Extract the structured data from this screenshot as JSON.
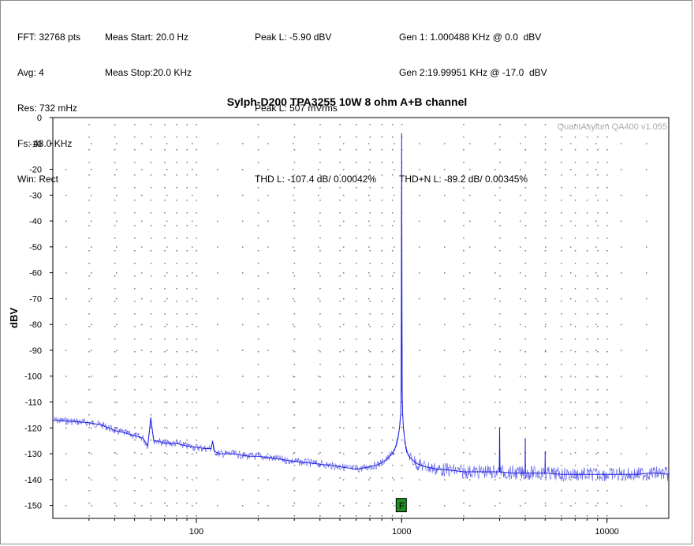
{
  "info": {
    "col1": [
      "FFT: 32768 pts",
      "Avg: 4",
      "Res: 732 mHz",
      "Fs: 48.0 KHz",
      "Win: Rect"
    ],
    "col2": [
      "Meas Start: 20.0 Hz",
      "Meas Stop:20.0 KHz"
    ],
    "col3": [
      "Peak L: -5.90 dBV",
      "",
      "Peak L: 507 mVrms",
      "",
      "THD L: -107.4 dB/ 0.00042%"
    ],
    "col4": [
      "Gen 1: 1.000488 KHz @ 0.0  dBV",
      "Gen 2:19.99951 KHz @ -17.0  dBV",
      "",
      "",
      "THD+N L: -89.2 dB/ 0.00345%"
    ]
  },
  "watermark": "QuantAsylum QA400 v1.055",
  "marker_label": "F",
  "chart_data": {
    "type": "line",
    "title": "Sylph-D200 TPA3255 10W 8 ohm A+B channel",
    "xlabel": "",
    "ylabel": "dBV",
    "xscale": "log",
    "xlim": [
      20,
      20000
    ],
    "ylim": [
      -155,
      0
    ],
    "xticks": [
      100,
      1000,
      10000
    ],
    "xtick_labels": [
      "100",
      "1000",
      "10000"
    ],
    "yticks": [
      0,
      -10,
      -20,
      -30,
      -40,
      -50,
      -60,
      -70,
      -80,
      -90,
      -100,
      -110,
      -120,
      -130,
      -140,
      -150
    ],
    "ytick_labels": [
      "0",
      "-10",
      "-20",
      "-30",
      "-40",
      "-50",
      "-60",
      "-70",
      "-80",
      "-90",
      "-100",
      "-110",
      "-120",
      "-130",
      "-140",
      "-150"
    ],
    "grid": true,
    "series": [
      {
        "color": "#2020e0",
        "x": [
          20,
          25,
          30,
          35,
          40,
          45,
          50,
          55,
          58,
          60,
          62,
          65,
          70,
          80,
          90,
          100,
          110,
          118,
          120,
          122,
          130,
          150,
          180,
          200,
          250,
          300,
          350,
          400,
          450,
          500,
          550,
          600,
          650,
          700,
          750,
          800,
          850,
          900,
          940,
          960,
          980,
          990,
          995,
          1000,
          1005,
          1010,
          1020,
          1040,
          1060,
          1100,
          1150,
          1200,
          1300,
          1500,
          1800,
          2000,
          2500,
          2990,
          3000,
          3010,
          3500,
          3990,
          4000,
          4010,
          4500,
          4990,
          5000,
          5010,
          6000,
          7000,
          8000,
          10000,
          12000,
          14000,
          16000,
          18000,
          20000
        ],
        "y": [
          -117,
          -117.5,
          -118,
          -119,
          -121,
          -122,
          -123,
          -124,
          -127,
          -116,
          -125,
          -125,
          -126,
          -126,
          -127,
          -127.5,
          -128,
          -128,
          -125,
          -129,
          -130,
          -130,
          -131,
          -131,
          -132,
          -133,
          -133.5,
          -134,
          -134.5,
          -135,
          -135.5,
          -136,
          -135.5,
          -135,
          -134.5,
          -133.5,
          -132,
          -130,
          -127,
          -124,
          -119,
          -114,
          -105,
          -6,
          -105,
          -113,
          -120,
          -126,
          -129.5,
          -131.5,
          -133,
          -134,
          -135,
          -136,
          -136.5,
          -137,
          -137,
          -137,
          -120,
          -137,
          -137.5,
          -137.5,
          -124,
          -137.5,
          -137.5,
          -137.5,
          -129,
          -137.5,
          -138,
          -138,
          -138,
          -138,
          -138,
          -138,
          -137.5,
          -137.5,
          -138
        ]
      }
    ],
    "marker": {
      "x": 1000,
      "y": -150
    }
  }
}
